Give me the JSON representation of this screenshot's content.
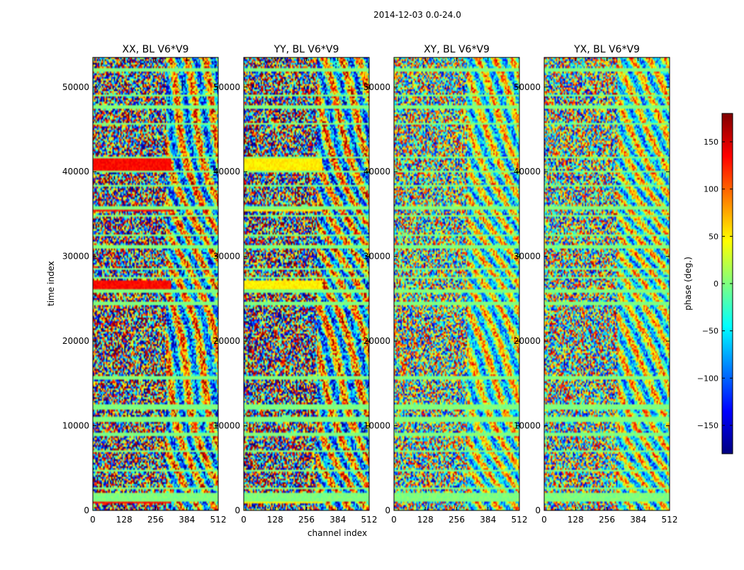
{
  "chart_data": {
    "type": "heatmap",
    "title": "2014-12-03 0.0-24.0",
    "xlabel": "channel index",
    "ylabel": "time index",
    "xlim": [
      0,
      512
    ],
    "ylim": [
      0,
      53500
    ],
    "x_ticks": [
      0,
      128,
      256,
      384,
      512
    ],
    "y_ticks": [
      0,
      10000,
      20000,
      30000,
      40000,
      50000
    ],
    "x_tick_labels": [
      "0",
      "128",
      "256",
      "384",
      "512"
    ],
    "y_tick_labels": [
      "0",
      "10000",
      "20000",
      "30000",
      "40000",
      "50000"
    ],
    "colormap": "jet",
    "panels": [
      {
        "title": "XX, BL V6*V9",
        "polarization": "XX",
        "baseline": "V6*V9"
      },
      {
        "title": "YY, BL V6*V9",
        "polarization": "YY",
        "baseline": "V6*V9"
      },
      {
        "title": "XY, BL V6*V9",
        "polarization": "XY",
        "baseline": "V6*V9"
      },
      {
        "title": "YX, BL V6*V9",
        "polarization": "YX",
        "baseline": "V6*V9"
      }
    ],
    "colorbar": {
      "label": "phase (deg.)",
      "range": [
        -180,
        180
      ],
      "ticks": [
        150,
        100,
        50,
        0,
        -50,
        -100,
        -150
      ],
      "tick_labels": [
        "150",
        "100",
        "50",
        "0",
        "−50",
        "−100",
        "−150"
      ],
      "cmap_colors": [
        "#00007f",
        "#0000ff",
        "#007fff",
        "#00ffff",
        "#7fff7f",
        "#ffff00",
        "#ff7f00",
        "#ff0000",
        "#7f0000"
      ]
    },
    "flagged_time_bands": [
      [
        1000,
        2000
      ],
      [
        2500,
        2800
      ],
      [
        4600,
        4900
      ],
      [
        6800,
        7100
      ],
      [
        8800,
        9100
      ],
      [
        10500,
        11000
      ],
      [
        12000,
        12600
      ],
      [
        15500,
        15900
      ],
      [
        24300,
        24600
      ],
      [
        25800,
        26100
      ],
      [
        27300,
        27600
      ],
      [
        28500,
        28700
      ],
      [
        31000,
        31300
      ],
      [
        32300,
        32600
      ],
      [
        34600,
        34900
      ],
      [
        35500,
        36000
      ],
      [
        38300,
        38500
      ],
      [
        40000,
        40200
      ],
      [
        41500,
        41800
      ],
      [
        45500,
        45800
      ],
      [
        47500,
        47800
      ],
      [
        48800,
        49100
      ],
      [
        51900,
        52200
      ]
    ],
    "saturated_bands": [
      [
        900,
        2000
      ],
      [
        25900,
        27100
      ],
      [
        35400,
        35800
      ],
      [
        40100,
        41500
      ]
    ]
  }
}
